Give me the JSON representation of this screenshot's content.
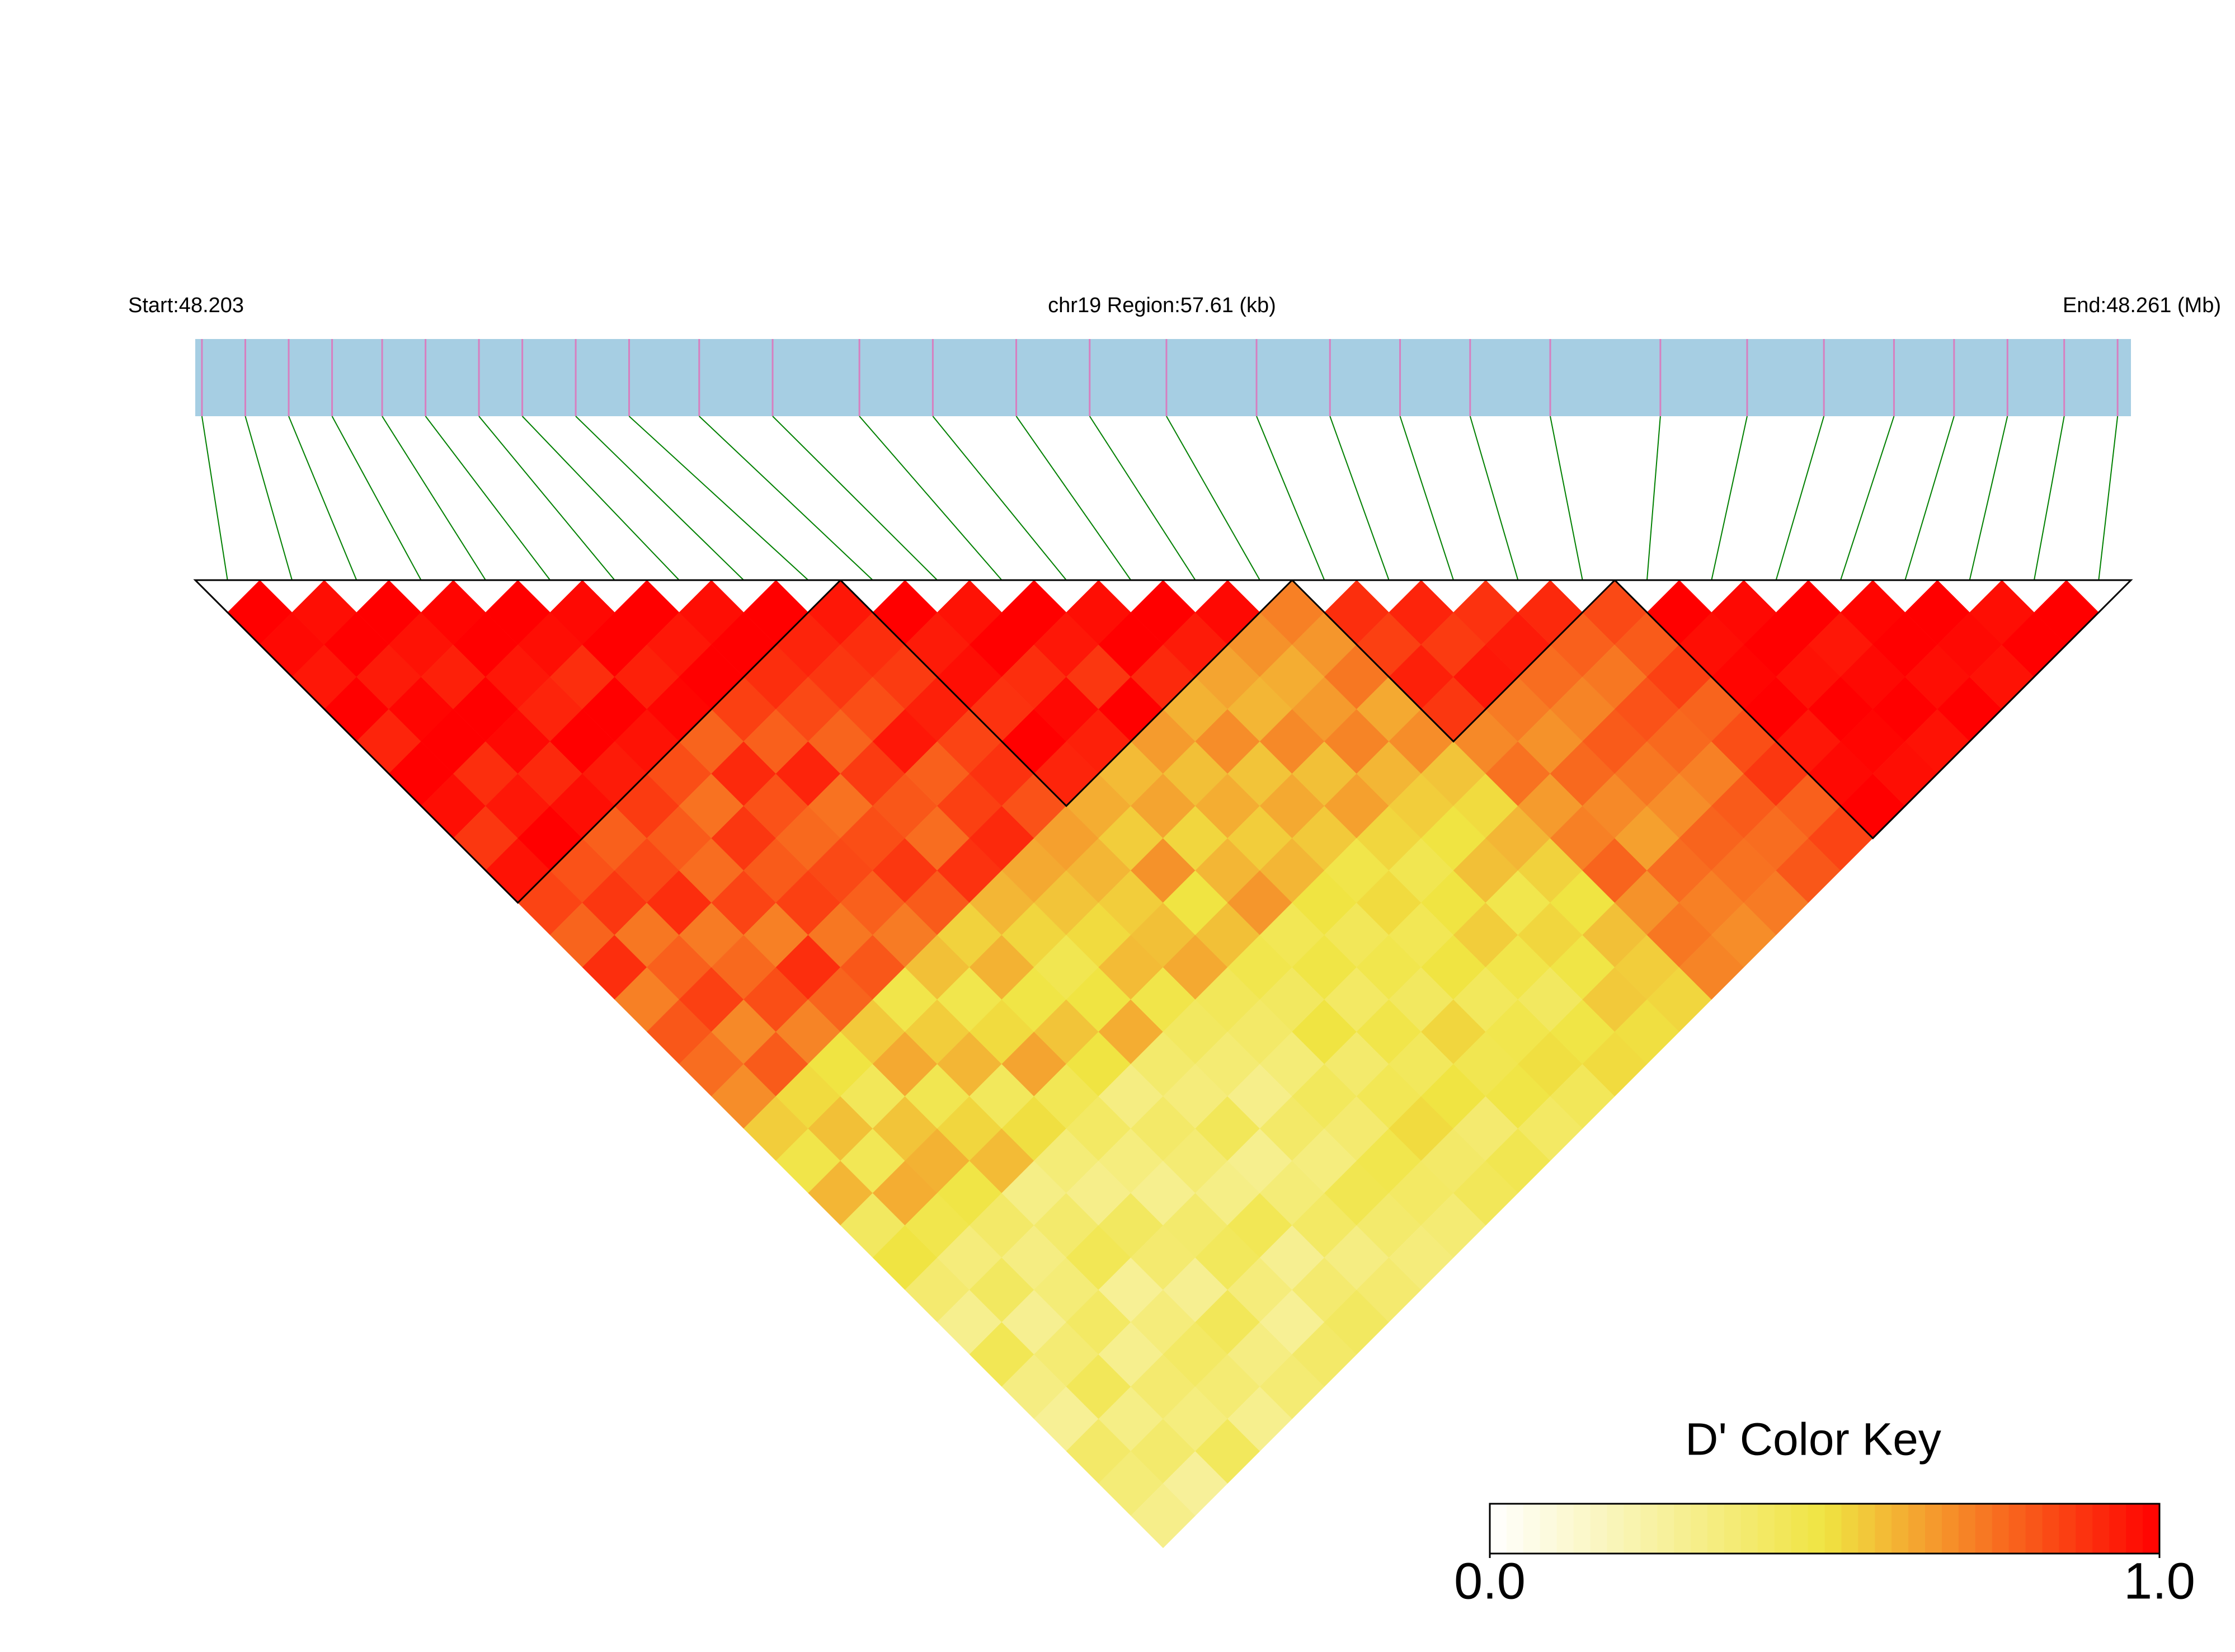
{
  "chart_data": {
    "type": "heatmap",
    "start_label": "Start:48.203",
    "region_label": "chr19 Region:57.61 (kb)",
    "end_label": "End:48.261 (Mb)",
    "legend_title": "D' Color Key",
    "xlim": [
      48.203,
      48.261
    ],
    "positions": [
      48.2032,
      48.2045,
      48.2058,
      48.2071,
      48.2086,
      48.2099,
      48.2115,
      48.2128,
      48.2144,
      48.216,
      48.2181,
      48.2203,
      48.2229,
      48.2251,
      48.2276,
      48.2298,
      48.2321,
      48.2348,
      48.237,
      48.2391,
      48.2412,
      48.2436,
      48.2469,
      48.2495,
      48.2518,
      48.2539,
      48.2557,
      48.2573,
      48.259,
      48.2606
    ],
    "values": [
      [
        1,
        0.98,
        0.95,
        1,
        0.92,
        1,
        0.97,
        0.88,
        0.96,
        0.85,
        0.78,
        0.9,
        0.72,
        0.81,
        0.76,
        0.69,
        0.55,
        0.48,
        0.6,
        0.42,
        0.5,
        0.38,
        0.3,
        0.45,
        0.33,
        0.28,
        0.4,
        0.36,
        0.31
      ],
      [
        0.97,
        1,
        0.94,
        0.99,
        1,
        0.9,
        0.95,
        1,
        0.82,
        0.88,
        0.74,
        0.79,
        0.86,
        0.7,
        0.8,
        0.52,
        0.58,
        0.45,
        0.62,
        0.47,
        0.35,
        0.42,
        0.29,
        0.37,
        0.44,
        0.32,
        0.39,
        0.27
      ],
      [
        1,
        0.96,
        0.93,
        1,
        0.98,
        0.91,
        0.97,
        0.79,
        0.84,
        0.9,
        0.73,
        0.77,
        0.83,
        0.71,
        0.5,
        0.44,
        0.57,
        0.61,
        0.49,
        0.4,
        0.33,
        0.36,
        0.41,
        0.3,
        0.38,
        0.34,
        0.43
      ],
      [
        0.99,
        1,
        0.95,
        0.92,
        1,
        0.94,
        0.87,
        0.8,
        0.76,
        0.85,
        0.72,
        0.9,
        0.78,
        0.56,
        0.63,
        0.46,
        0.53,
        0.59,
        0.32,
        0.39,
        0.45,
        0.28,
        0.35,
        0.41,
        0.37,
        0.3
      ],
      [
        1,
        0.97,
        0.9,
        1,
        0.96,
        0.83,
        0.75,
        0.88,
        0.8,
        0.86,
        0.74,
        0.81,
        0.48,
        0.55,
        0.6,
        0.43,
        0.51,
        0.36,
        0.31,
        0.42,
        0.38,
        0.29,
        0.44,
        0.33,
        0.37
      ],
      [
        0.98,
        1,
        0.93,
        0.99,
        0.78,
        0.91,
        0.82,
        0.77,
        0.84,
        0.79,
        0.73,
        0.58,
        0.47,
        0.52,
        0.64,
        0.45,
        0.41,
        0.34,
        0.3,
        0.39,
        0.43,
        0.35,
        0.28,
        0.4
      ],
      [
        1,
        0.95,
        1,
        0.86,
        0.79,
        0.92,
        0.75,
        0.83,
        0.88,
        0.8,
        0.54,
        0.61,
        0.49,
        0.57,
        0.5,
        0.33,
        0.4,
        0.37,
        0.32,
        0.45,
        0.29,
        0.38,
        0.42
      ],
      [
        0.97,
        1,
        0.9,
        0.84,
        0.78,
        0.87,
        0.81,
        0.76,
        0.89,
        0.6,
        0.53,
        0.46,
        0.5,
        0.62,
        0.39,
        0.35,
        0.44,
        0.3,
        0.36,
        0.41,
        0.33,
        0.38
      ],
      [
        1,
        0.92,
        0.88,
        0.83,
        0.95,
        0.79,
        0.86,
        0.91,
        0.63,
        0.57,
        0.52,
        0.59,
        0.48,
        0.42,
        0.37,
        0.31,
        0.4,
        0.34,
        0.46,
        0.39,
        0.35
      ],
      [
        0.95,
        0.9,
        0.87,
        0.93,
        0.85,
        0.89,
        0.82,
        0.65,
        0.6,
        0.55,
        0.58,
        0.63,
        0.44,
        0.4,
        0.36,
        0.43,
        0.38,
        0.47,
        0.41,
        0.37
      ],
      [
        1,
        0.94,
        0.97,
        0.89,
        1,
        0.92,
        0.62,
        0.55,
        0.68,
        0.5,
        0.58,
        0.47,
        0.42,
        0.5,
        0.39,
        0.45,
        0.52,
        0.4,
        0.44
      ],
      [
        0.96,
        1,
        0.9,
        0.98,
        0.93,
        0.59,
        0.64,
        0.53,
        0.6,
        0.67,
        0.45,
        0.49,
        0.41,
        0.48,
        0.43,
        0.5,
        0.38,
        0.46
      ],
      [
        1,
        0.95,
        0.88,
        1,
        0.66,
        0.58,
        0.62,
        0.55,
        0.6,
        0.5,
        0.44,
        0.47,
        0.42,
        0.53,
        0.46,
        0.49,
        0.41
      ],
      [
        0.97,
        1,
        0.91,
        0.61,
        0.69,
        0.57,
        0.63,
        0.56,
        0.48,
        0.52,
        0.45,
        0.5,
        0.43,
        0.47,
        0.51,
        0.44
      ],
      [
        1,
        0.94,
        0.64,
        0.6,
        0.7,
        0.58,
        0.65,
        0.53,
        0.46,
        0.5,
        0.55,
        0.48,
        0.42,
        0.49,
        0.52
      ],
      [
        0.98,
        0.68,
        0.62,
        0.66,
        0.71,
        0.6,
        0.55,
        0.5,
        0.58,
        0.47,
        0.53,
        0.49,
        0.56,
        0.51
      ],
      [
        0.72,
        0.67,
        0.74,
        0.63,
        0.69,
        0.57,
        0.52,
        0.6,
        0.54,
        0.5,
        0.58,
        0.55,
        0.53
      ],
      [
        0.9,
        0.86,
        0.93,
        0.88,
        0.7,
        0.75,
        0.66,
        0.72,
        0.78,
        0.68,
        0.74,
        0.71
      ],
      [
        0.92,
        0.87,
        0.95,
        0.73,
        0.68,
        0.77,
        0.7,
        0.65,
        0.76,
        0.72,
        0.69
      ],
      [
        0.89,
        0.94,
        0.76,
        0.71,
        0.8,
        0.74,
        0.69,
        0.78,
        0.75,
        0.73
      ],
      [
        0.91,
        0.79,
        0.74,
        0.82,
        0.77,
        0.72,
        0.8,
        0.76,
        0.81
      ],
      [
        0.84,
        0.8,
        0.86,
        0.78,
        0.83,
        0.88,
        0.79,
        0.85
      ],
      [
        1,
        0.97,
        0.99,
        1,
        0.95,
        0.98,
        1
      ],
      [
        0.98,
        1,
        0.96,
        1,
        0.99,
        0.97
      ],
      [
        1,
        0.95,
        0.98,
        1,
        0.96
      ],
      [
        0.99,
        1,
        0.97,
        1
      ],
      [
        1,
        0.98,
        0.96
      ],
      [
        0.97,
        1
      ],
      [
        1
      ]
    ],
    "blocks": [
      [
        0,
        9
      ],
      [
        10,
        16
      ],
      [
        17,
        21
      ],
      [
        22,
        29
      ]
    ],
    "clim": [
      0,
      1
    ],
    "colors": [
      "#ffffff",
      "#f0e442",
      "#ff0000"
    ],
    "colorbar_ticks": [
      {
        "value": 0,
        "label": "0.0"
      },
      {
        "value": 1,
        "label": "1.0"
      }
    ],
    "bar_color": "#a6cee3",
    "snp_color": "#d77fc0",
    "link_color": "#008000"
  }
}
